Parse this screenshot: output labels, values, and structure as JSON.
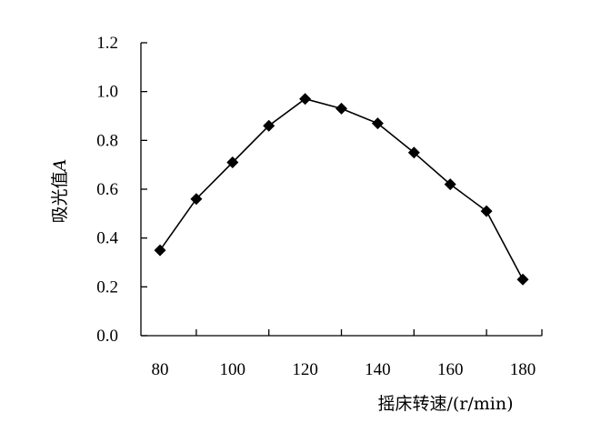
{
  "chart_data": {
    "type": "line",
    "title": "",
    "xlabel": "摇床转速/(r/min)",
    "ylabel_main": "吸光值",
    "ylabel_var": "A",
    "x": [
      80,
      90,
      100,
      110,
      120,
      130,
      140,
      150,
      160,
      170,
      180
    ],
    "series": [
      {
        "values": [
          0.35,
          0.56,
          0.71,
          0.86,
          0.97,
          0.93,
          0.87,
          0.75,
          0.62,
          0.51,
          0.23
        ]
      }
    ],
    "x_ticks": [
      "80",
      "100",
      "120",
      "140",
      "160",
      "180"
    ],
    "y_ticks": [
      "0.0",
      "0.2",
      "0.4",
      "0.6",
      "0.8",
      "1.0",
      "1.2"
    ],
    "xlim": [
      75,
      180
    ],
    "ylim": [
      0,
      1.2
    ],
    "grid": false,
    "line_color": "#000000",
    "marker": "diamond"
  }
}
